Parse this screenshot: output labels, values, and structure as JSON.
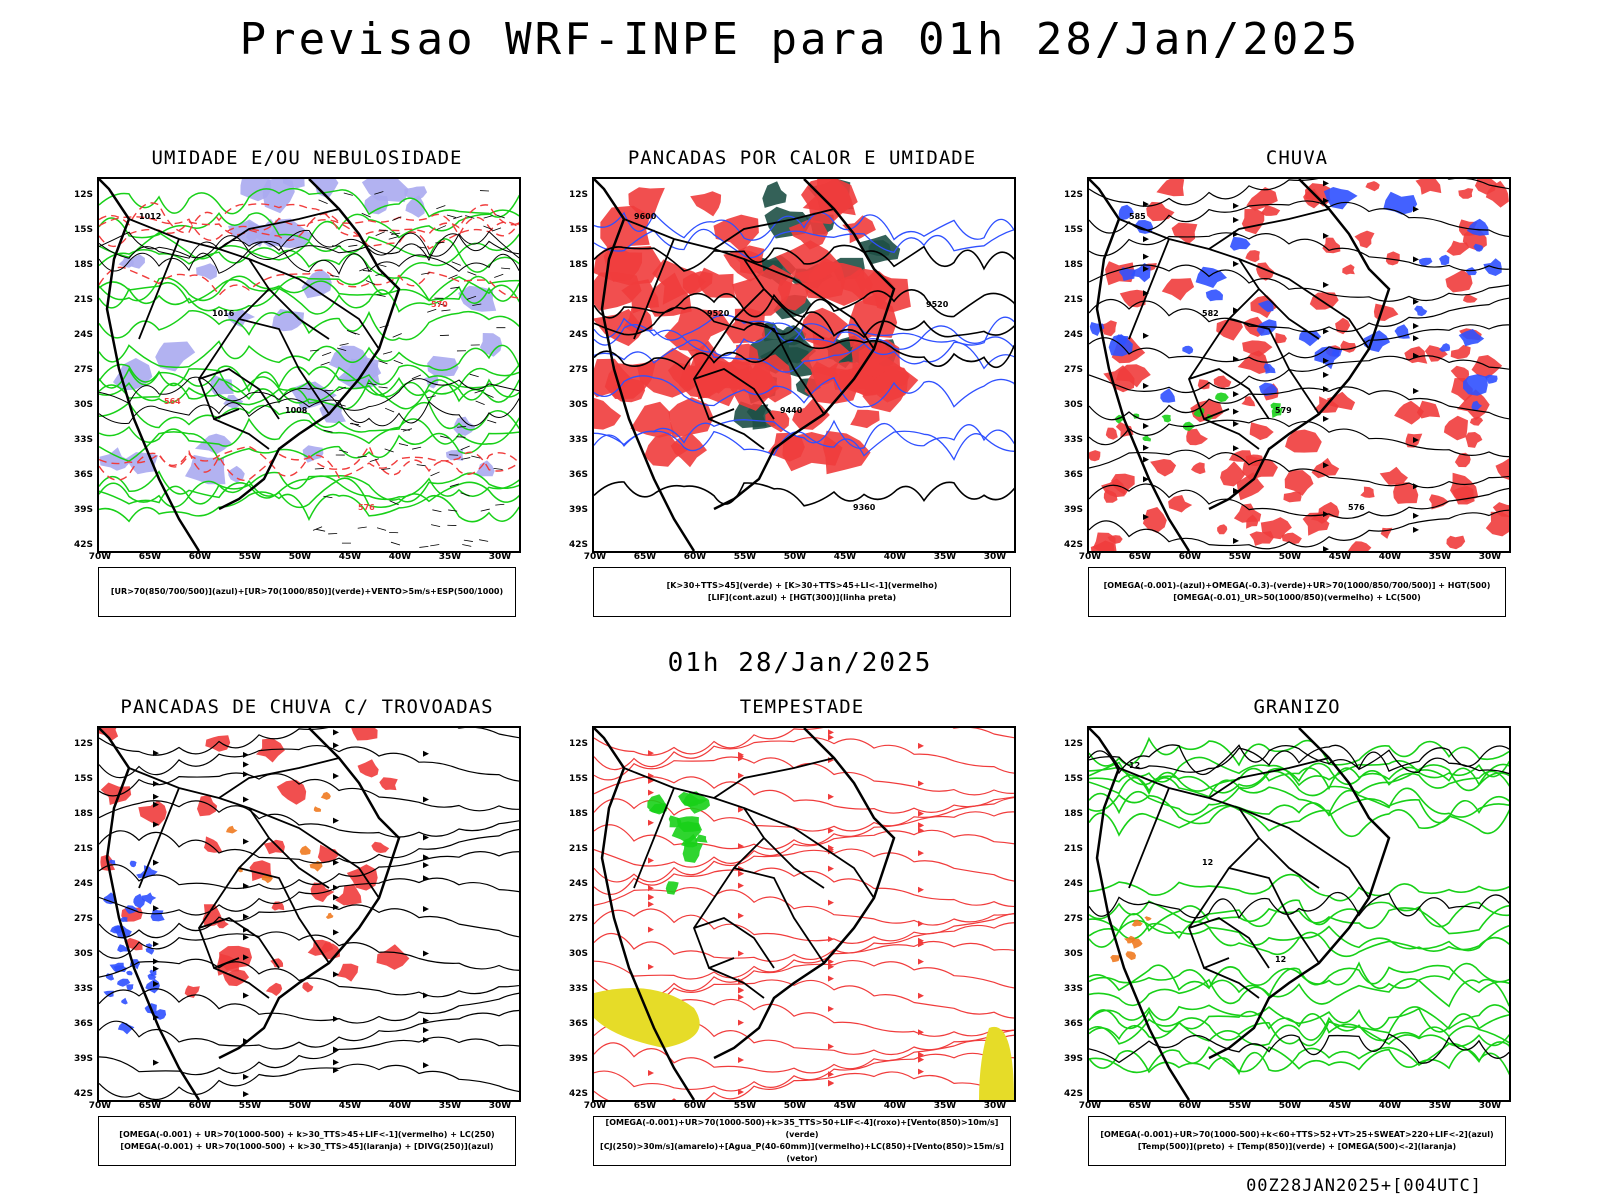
{
  "title": "Previsao WRF-INPE  para 01h 28/Jan/2025",
  "subtitle": "01h 28/Jan/2025",
  "footer": "00Z28JAN2025+[004UTC]",
  "axes": {
    "lat_labels": [
      "12S",
      "15S",
      "18S",
      "21S",
      "24S",
      "27S",
      "30S",
      "33S",
      "36S",
      "39S",
      "42S"
    ],
    "lon_labels": [
      "70W",
      "65W",
      "60W",
      "55W",
      "50W",
      "45W",
      "40W",
      "35W",
      "30W"
    ]
  },
  "colors": {
    "red": "#f03c3c",
    "green": "#18d018",
    "blue": "#2f50ff",
    "lavender": "#aaaaf0",
    "darkteal": "#1e5046",
    "yellow": "#e6dc28",
    "orange": "#f07a20"
  },
  "panels": [
    {
      "title": "UMIDADE E/OU NEBULOSIDADE",
      "legend": [
        "[UR>70(850/700/500)](azul)+[UR>70(1000/850)](verde)+VENTO>5m/s+ESP(500/1000)"
      ],
      "contour_labels": [
        "1012",
        "1016",
        "1008",
        "576",
        "570",
        "564"
      ]
    },
    {
      "title": "PANCADAS POR CALOR E UMIDADE",
      "legend": [
        "[K>30+TTS>45](verde) + [K>30+TTS>45+LI<-1](vermelho)",
        "[LIF](cont.azul) + [HGT(300)](linha preta)"
      ],
      "contour_labels": [
        "9600",
        "9520",
        "9440",
        "9360",
        "9520"
      ]
    },
    {
      "title": "CHUVA",
      "legend": [
        "[OMEGA(-0.001)-(azul)+OMEGA(-0.3)-(verde)+UR>70(1000/850/700/500)] + HGT(500)",
        "[OMEGA(-0.01)_UR>50(1000/850)(vermelho) + LC(500)"
      ],
      "contour_labels": [
        "585",
        "582",
        "579",
        "576"
      ]
    },
    {
      "title": "PANCADAS DE CHUVA C/ TROVOADAS",
      "legend": [
        "[OMEGA(-0.001) + UR>70(1000-500) + k>30_TTS>45+LIF<-1](vermelho) + LC(250)",
        "[OMEGA(-0.001) + UR>70(1000-500) + k>30_TTS>45](laranja) + [DIVG(250)](azul)"
      ],
      "contour_labels": []
    },
    {
      "title": "TEMPESTADE",
      "legend": [
        "[OMEGA(-0.001)+UR>70(1000-500)+k>35_TTS>50+LIF<-4](roxo)+[Vento(850)>10m/s](verde)",
        "[CJ(250)>30m/s](amarelo)+[Agua_P(40-60mm)](vermelho)+LC(850)+[Vento(850)>15m/s](vetor)"
      ],
      "contour_labels": []
    },
    {
      "title": "GRANIZO",
      "legend": [
        "[OMEGA(-0.001)+UR>70(1000-500)+k<60+TTS>52+VT>25+SWEAT>220+LIF<-2](azul)",
        "[Temp(500)](preto) + [Temp(850)](verde) + [OMEGA(500)<-2](laranja)"
      ],
      "contour_labels": [
        "12",
        "12",
        "12"
      ]
    }
  ]
}
